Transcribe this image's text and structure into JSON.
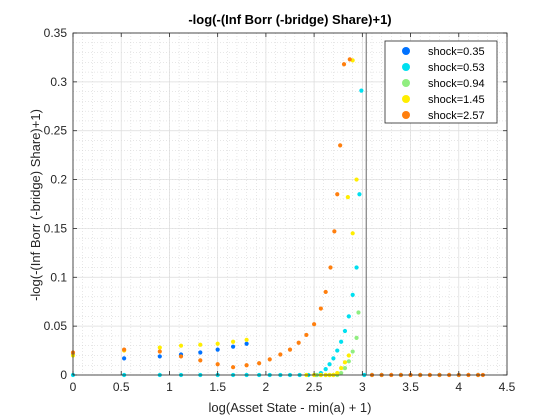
{
  "chart_data": {
    "type": "scatter",
    "title": "-log(-(Inf Borr (-bridge) Share)+1)",
    "xlabel": "log(Asset State - min(a) + 1)",
    "ylabel": "-log(-(Inf Borr (-bridge) Share)+1)",
    "xlim": [
      0,
      4.5
    ],
    "ylim": [
      0,
      0.35
    ],
    "xticks": [
      0,
      0.5,
      1,
      1.5,
      2,
      2.5,
      3,
      3.5,
      4,
      4.5
    ],
    "xtick_labels": [
      "0",
      "0.5",
      "1",
      "1.5",
      "2",
      "2.5",
      "3",
      "3.5",
      "4",
      "4.5"
    ],
    "yticks": [
      0,
      0.05,
      0.1,
      0.15,
      0.2,
      0.25,
      0.3,
      0.35
    ],
    "ytick_labels": [
      "0",
      "0.05",
      "0.1",
      "0.15",
      "0.2",
      "0.25",
      "0.3",
      "0.35"
    ],
    "grid": true,
    "minor_grid": true,
    "legend_position": "top-right",
    "vertical_line_x": 3.04,
    "series": [
      {
        "name": "shock=0.35",
        "color": "#0072ff",
        "points": [
          [
            0,
            0.021
          ],
          [
            0.53,
            0.017
          ],
          [
            0.9,
            0.019
          ],
          [
            1.12,
            0.021
          ],
          [
            1.32,
            0.023
          ],
          [
            1.5,
            0.026
          ],
          [
            1.66,
            0.029
          ],
          [
            1.8,
            0.032
          ]
        ]
      },
      {
        "name": "shock=0.53",
        "color": "#00e0f0",
        "points": [
          [
            0,
            0
          ],
          [
            0.53,
            0
          ],
          [
            0.9,
            0
          ],
          [
            1.12,
            0
          ],
          [
            1.32,
            0
          ],
          [
            1.5,
            0
          ],
          [
            1.66,
            0
          ],
          [
            1.8,
            0
          ],
          [
            1.93,
            0
          ],
          [
            2.04,
            0
          ],
          [
            2.15,
            0
          ],
          [
            2.25,
            0
          ],
          [
            2.35,
            0
          ],
          [
            2.44,
            0
          ],
          [
            2.52,
            0
          ],
          [
            2.57,
            0.002
          ],
          [
            2.62,
            0.006
          ],
          [
            2.66,
            0.011
          ],
          [
            2.7,
            0.017
          ],
          [
            2.74,
            0.025
          ],
          [
            2.78,
            0.034
          ],
          [
            2.82,
            0.045
          ],
          [
            2.86,
            0.06
          ],
          [
            2.9,
            0.082
          ],
          [
            2.94,
            0.11
          ],
          [
            2.97,
            0.185
          ],
          [
            2.99,
            0.291
          ],
          [
            3.02,
            0
          ],
          [
            3.1,
            0
          ],
          [
            3.2,
            0
          ],
          [
            3.4,
            0
          ],
          [
            3.6,
            0
          ],
          [
            3.8,
            0
          ],
          [
            4.0,
            0
          ],
          [
            4.2,
            0
          ]
        ]
      },
      {
        "name": "shock=0.94",
        "color": "#90ee80",
        "points": [
          [
            2.53,
            0
          ],
          [
            2.57,
            0
          ],
          [
            2.62,
            0
          ],
          [
            2.66,
            0
          ],
          [
            2.7,
            0
          ],
          [
            2.74,
            0
          ],
          [
            2.78,
            0.002
          ],
          [
            2.82,
            0.007
          ],
          [
            2.86,
            0.014
          ],
          [
            2.9,
            0.024
          ],
          [
            2.94,
            0.038
          ],
          [
            2.96,
            0.064
          ]
        ]
      },
      {
        "name": "shock=1.45",
        "color": "#ffee00",
        "points": [
          [
            0,
            0.02
          ],
          [
            0.53,
            0.025
          ],
          [
            0.9,
            0.028
          ],
          [
            1.12,
            0.03
          ],
          [
            1.32,
            0.031
          ],
          [
            1.5,
            0.032
          ],
          [
            1.66,
            0.034
          ],
          [
            1.8,
            0.036
          ],
          [
            2.42,
            0
          ],
          [
            2.5,
            0
          ],
          [
            2.57,
            0
          ],
          [
            2.62,
            0
          ],
          [
            2.66,
            0
          ],
          [
            2.7,
            0
          ],
          [
            2.74,
            0.002
          ],
          [
            2.78,
            0.007
          ],
          [
            2.82,
            0.013
          ],
          [
            2.86,
            0.02
          ],
          [
            2.9,
            0.145
          ],
          [
            2.94,
            0.2
          ],
          [
            2.85,
            0.182
          ],
          [
            2.9,
            0.322
          ]
        ]
      },
      {
        "name": "shock=2.57",
        "color": "#ff7f0e",
        "points": [
          [
            0,
            0.023
          ],
          [
            0.53,
            0.026
          ],
          [
            0.9,
            0.024
          ],
          [
            1.12,
            0.019
          ],
          [
            1.32,
            0.015
          ],
          [
            1.5,
            0.011
          ],
          [
            1.66,
            0.008
          ],
          [
            1.8,
            0.01
          ],
          [
            1.93,
            0.012
          ],
          [
            2.04,
            0.016
          ],
          [
            2.15,
            0.021
          ],
          [
            2.25,
            0.026
          ],
          [
            2.34,
            0.033
          ],
          [
            2.42,
            0.041
          ],
          [
            2.5,
            0.052
          ],
          [
            2.57,
            0.068
          ],
          [
            2.62,
            0.085
          ],
          [
            2.67,
            0.11
          ],
          [
            2.71,
            0.147
          ],
          [
            2.74,
            0.185
          ],
          [
            2.77,
            0.235
          ],
          [
            2.81,
            0.318
          ],
          [
            2.87,
            0.323
          ],
          [
            3.1,
            0
          ],
          [
            3.2,
            0
          ],
          [
            3.3,
            0
          ],
          [
            3.4,
            0
          ],
          [
            3.5,
            0
          ],
          [
            3.6,
            0
          ],
          [
            3.7,
            0
          ],
          [
            3.8,
            0
          ],
          [
            3.9,
            0
          ],
          [
            4.0,
            0
          ],
          [
            4.1,
            0
          ],
          [
            4.2,
            0
          ],
          [
            4.25,
            0
          ]
        ]
      }
    ]
  }
}
